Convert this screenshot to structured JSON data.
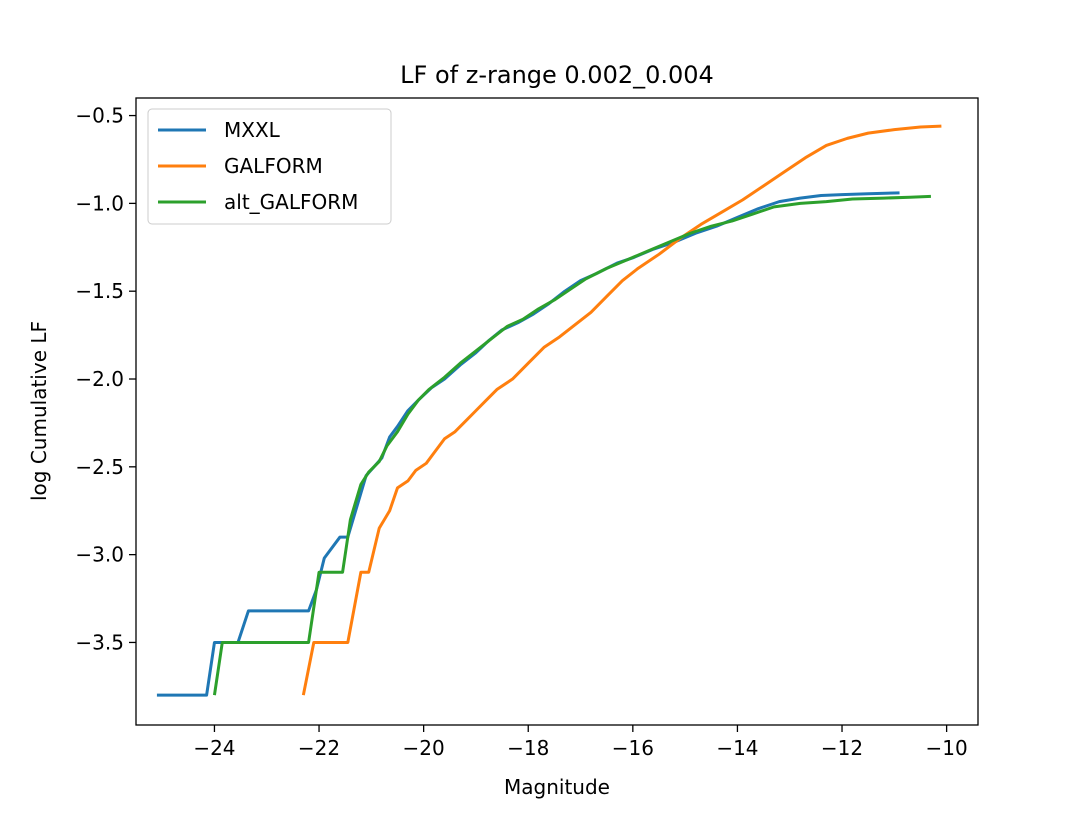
{
  "chart_data": {
    "type": "line",
    "title": "LF of z-range 0.002_0.004",
    "xlabel": "Magnitude",
    "ylabel": "log Cumulative LF",
    "xlim": [
      -25.5,
      -9.4
    ],
    "ylim": [
      -3.97,
      -0.4
    ],
    "xticks": [
      -24,
      -22,
      -20,
      -18,
      -16,
      -14,
      -12,
      -10
    ],
    "yticks": [
      -3.5,
      -3.0,
      -2.5,
      -2.0,
      -1.5,
      -1.0,
      -0.5
    ],
    "xtick_labels": [
      "−24",
      "−22",
      "−20",
      "−18",
      "−16",
      "−14",
      "−12",
      "−10"
    ],
    "ytick_labels": [
      "−3.5",
      "−3.0",
      "−2.5",
      "−2.0",
      "−1.5",
      "−1.0",
      "−0.5"
    ],
    "grid": false,
    "legend_position": "upper-left",
    "series": [
      {
        "name": "MXXL",
        "color": "#1f77b4",
        "points": [
          [
            -25.1,
            -3.8
          ],
          [
            -24.15,
            -3.8
          ],
          [
            -24.0,
            -3.5
          ],
          [
            -23.55,
            -3.5
          ],
          [
            -23.35,
            -3.32
          ],
          [
            -22.2,
            -3.32
          ],
          [
            -22.05,
            -3.2
          ],
          [
            -21.9,
            -3.02
          ],
          [
            -21.6,
            -2.9
          ],
          [
            -21.45,
            -2.9
          ],
          [
            -21.3,
            -2.75
          ],
          [
            -21.1,
            -2.55
          ],
          [
            -20.95,
            -2.5
          ],
          [
            -20.8,
            -2.45
          ],
          [
            -20.65,
            -2.33
          ],
          [
            -20.5,
            -2.27
          ],
          [
            -20.3,
            -2.18
          ],
          [
            -20.1,
            -2.12
          ],
          [
            -19.85,
            -2.05
          ],
          [
            -19.6,
            -2.0
          ],
          [
            -19.3,
            -1.92
          ],
          [
            -19.0,
            -1.85
          ],
          [
            -18.75,
            -1.78
          ],
          [
            -18.5,
            -1.72
          ],
          [
            -18.2,
            -1.68
          ],
          [
            -17.9,
            -1.63
          ],
          [
            -17.6,
            -1.57
          ],
          [
            -17.3,
            -1.5
          ],
          [
            -17.0,
            -1.44
          ],
          [
            -16.7,
            -1.4
          ],
          [
            -16.3,
            -1.34
          ],
          [
            -16.0,
            -1.31
          ],
          [
            -15.6,
            -1.26
          ],
          [
            -15.2,
            -1.22
          ],
          [
            -14.8,
            -1.17
          ],
          [
            -14.4,
            -1.13
          ],
          [
            -14.0,
            -1.08
          ],
          [
            -13.6,
            -1.03
          ],
          [
            -13.2,
            -0.99
          ],
          [
            -12.8,
            -0.97
          ],
          [
            -12.4,
            -0.955
          ],
          [
            -12.0,
            -0.95
          ],
          [
            -11.5,
            -0.945
          ],
          [
            -10.9,
            -0.94
          ]
        ]
      },
      {
        "name": "GALFORM",
        "color": "#ff7f0e",
        "points": [
          [
            -22.3,
            -3.8
          ],
          [
            -22.1,
            -3.5
          ],
          [
            -21.45,
            -3.5
          ],
          [
            -21.2,
            -3.1
          ],
          [
            -21.05,
            -3.1
          ],
          [
            -20.85,
            -2.85
          ],
          [
            -20.65,
            -2.75
          ],
          [
            -20.5,
            -2.62
          ],
          [
            -20.3,
            -2.58
          ],
          [
            -20.15,
            -2.52
          ],
          [
            -19.95,
            -2.48
          ],
          [
            -19.8,
            -2.42
          ],
          [
            -19.6,
            -2.34
          ],
          [
            -19.4,
            -2.3
          ],
          [
            -19.2,
            -2.24
          ],
          [
            -19.0,
            -2.18
          ],
          [
            -18.8,
            -2.12
          ],
          [
            -18.6,
            -2.06
          ],
          [
            -18.3,
            -2.0
          ],
          [
            -18.0,
            -1.91
          ],
          [
            -17.7,
            -1.82
          ],
          [
            -17.4,
            -1.76
          ],
          [
            -17.1,
            -1.69
          ],
          [
            -16.8,
            -1.62
          ],
          [
            -16.5,
            -1.53
          ],
          [
            -16.2,
            -1.44
          ],
          [
            -15.9,
            -1.37
          ],
          [
            -15.5,
            -1.29
          ],
          [
            -15.1,
            -1.2
          ],
          [
            -14.7,
            -1.12
          ],
          [
            -14.3,
            -1.05
          ],
          [
            -13.9,
            -0.98
          ],
          [
            -13.5,
            -0.9
          ],
          [
            -13.1,
            -0.82
          ],
          [
            -12.7,
            -0.74
          ],
          [
            -12.3,
            -0.67
          ],
          [
            -11.9,
            -0.63
          ],
          [
            -11.5,
            -0.6
          ],
          [
            -11.0,
            -0.58
          ],
          [
            -10.5,
            -0.565
          ],
          [
            -10.1,
            -0.56
          ]
        ]
      },
      {
        "name": "alt_GALFORM",
        "color": "#2ca02c",
        "points": [
          [
            -24.0,
            -3.8
          ],
          [
            -23.85,
            -3.5
          ],
          [
            -22.2,
            -3.5
          ],
          [
            -22.0,
            -3.1
          ],
          [
            -21.55,
            -3.1
          ],
          [
            -21.4,
            -2.8
          ],
          [
            -21.2,
            -2.6
          ],
          [
            -21.05,
            -2.53
          ],
          [
            -20.85,
            -2.47
          ],
          [
            -20.7,
            -2.38
          ],
          [
            -20.5,
            -2.3
          ],
          [
            -20.3,
            -2.2
          ],
          [
            -20.1,
            -2.12
          ],
          [
            -19.9,
            -2.06
          ],
          [
            -19.6,
            -1.99
          ],
          [
            -19.3,
            -1.91
          ],
          [
            -19.0,
            -1.84
          ],
          [
            -18.7,
            -1.77
          ],
          [
            -18.4,
            -1.7
          ],
          [
            -18.1,
            -1.66
          ],
          [
            -17.8,
            -1.6
          ],
          [
            -17.5,
            -1.55
          ],
          [
            -17.2,
            -1.49
          ],
          [
            -16.9,
            -1.43
          ],
          [
            -16.5,
            -1.37
          ],
          [
            -16.1,
            -1.32
          ],
          [
            -15.7,
            -1.27
          ],
          [
            -15.3,
            -1.22
          ],
          [
            -14.9,
            -1.17
          ],
          [
            -14.5,
            -1.13
          ],
          [
            -14.1,
            -1.1
          ],
          [
            -13.7,
            -1.06
          ],
          [
            -13.3,
            -1.02
          ],
          [
            -12.8,
            -1.0
          ],
          [
            -12.3,
            -0.99
          ],
          [
            -11.8,
            -0.975
          ],
          [
            -11.2,
            -0.97
          ],
          [
            -10.7,
            -0.965
          ],
          [
            -10.3,
            -0.96
          ]
        ]
      }
    ]
  }
}
